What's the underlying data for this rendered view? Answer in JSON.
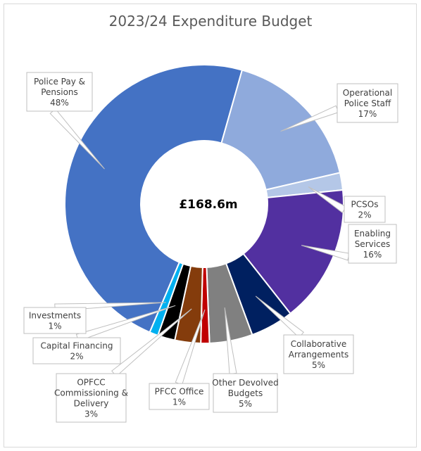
{
  "chart_data": {
    "type": "pie",
    "variant": "donut",
    "title": "2023/24 Expenditure Budget",
    "center_label": "£168.6m",
    "slices": [
      {
        "name": "Police Pay & Pensions",
        "label_lines": [
          "Police Pay &",
          "Pensions"
        ],
        "pct_label": "48%",
        "value": 48,
        "color": "#4472c4"
      },
      {
        "name": "Operational Police Staff",
        "label_lines": [
          "Operational",
          "Police Staff"
        ],
        "pct_label": "17%",
        "value": 17,
        "color": "#8faadc"
      },
      {
        "name": "PCSOs",
        "label_lines": [
          "PCSOs"
        ],
        "pct_label": "2%",
        "value": 2,
        "color": "#b4c7e7"
      },
      {
        "name": "Enabling Services",
        "label_lines": [
          "Enabling",
          "Services"
        ],
        "pct_label": "16%",
        "value": 16,
        "color": "#5230a0"
      },
      {
        "name": "Collaborative Arrangements",
        "label_lines": [
          "Collaborative",
          "Arrangements"
        ],
        "pct_label": "5%",
        "value": 5,
        "color": "#002060"
      },
      {
        "name": "Other Devolved Budgets",
        "label_lines": [
          "Other Devolved",
          "Budgets"
        ],
        "pct_label": "5%",
        "value": 5,
        "color": "#808080"
      },
      {
        "name": "PFCC Office",
        "label_lines": [
          "PFCC Office"
        ],
        "pct_label": "1%",
        "value": 1,
        "color": "#c00000"
      },
      {
        "name": "OPFCC Commissioning & Delivery",
        "label_lines": [
          "OPFCC",
          "Commissioning &",
          "Delivery"
        ],
        "pct_label": "3%",
        "value": 3,
        "color": "#843c0c"
      },
      {
        "name": "Capital Financing",
        "label_lines": [
          "Capital Financing"
        ],
        "pct_label": "2%",
        "value": 2,
        "color": "#000000"
      },
      {
        "name": "Investments",
        "label_lines": [
          "Investments"
        ],
        "pct_label": "1%",
        "value": 1,
        "color": "#00b0f0"
      }
    ],
    "legend": "none",
    "colors": {
      "callout_border": "#bfbfbf",
      "callout_text": "#404040",
      "title_text": "#595959"
    }
  }
}
